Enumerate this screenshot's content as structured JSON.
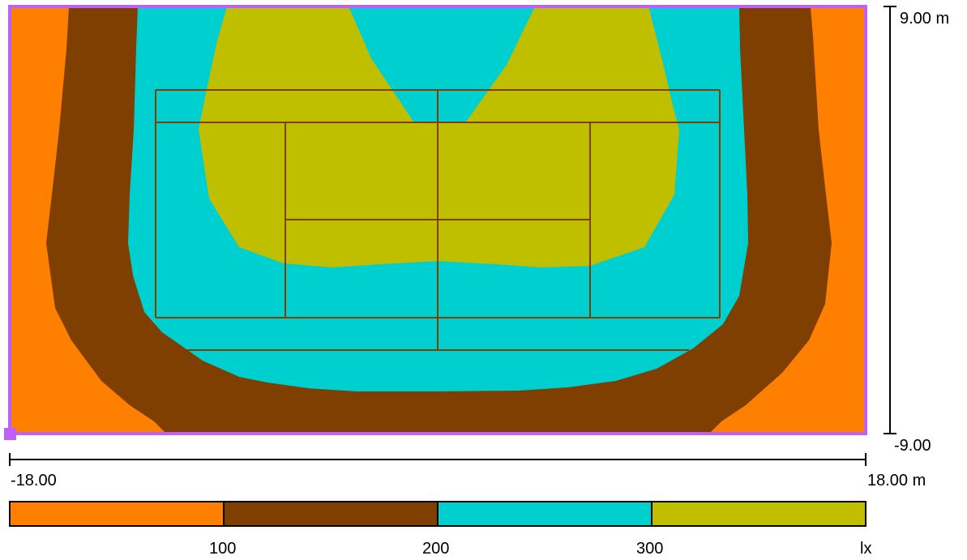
{
  "plan": {
    "palette": {
      "orange": "#ff8000",
      "brown": "#7f3f00",
      "cyan": "#00cfcf",
      "olive": "#bfbf00",
      "border": "#bf5fff",
      "court_lines": "#7f3f00"
    }
  },
  "y_axis": {
    "top_label": "9.00 m",
    "bottom_label": "-9.00"
  },
  "x_axis": {
    "left_label": "-18.00",
    "right_label": "18.00 m"
  },
  "legend": {
    "unit": "lx",
    "thresholds": [
      "100",
      "200",
      "300"
    ],
    "bands": [
      {
        "color": "#ff8000"
      },
      {
        "color": "#7f3f00"
      },
      {
        "color": "#00cfcf"
      },
      {
        "color": "#bfbf00"
      }
    ]
  }
}
